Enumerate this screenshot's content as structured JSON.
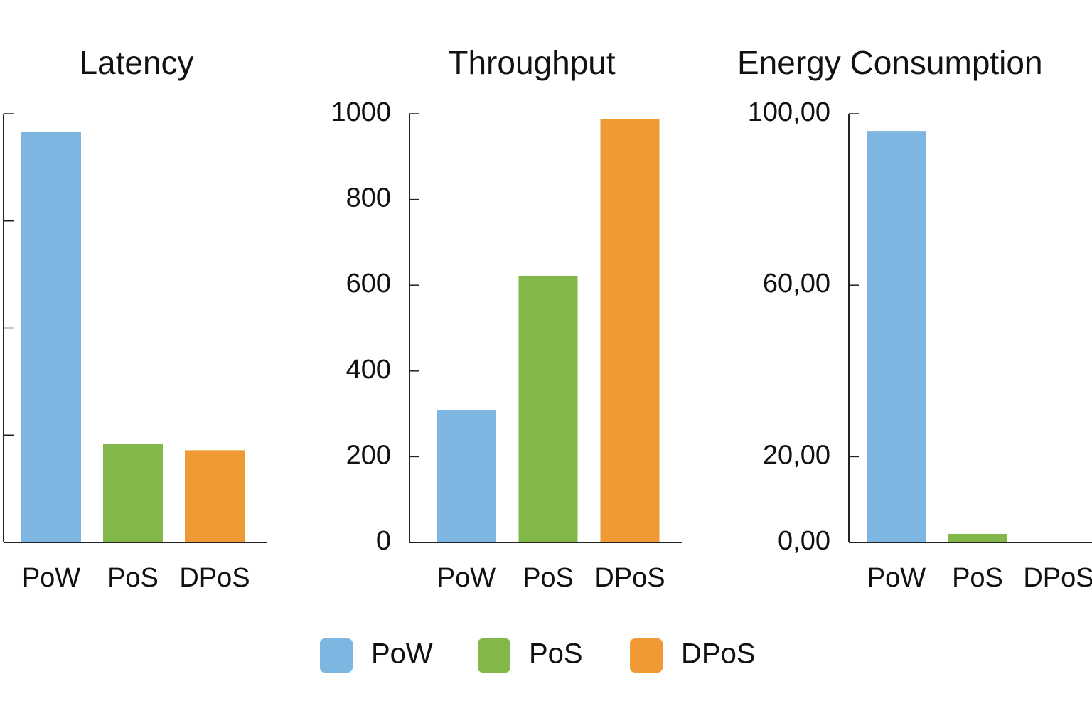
{
  "chart_data": [
    {
      "type": "bar",
      "title": "Latency",
      "categories": [
        "PoW",
        "PoS",
        "DPoS"
      ],
      "values": [
        3.83,
        0.92,
        0.86
      ],
      "colors": [
        "#7db6e0",
        "#82b84a",
        "#f09a36"
      ],
      "ylim": [
        0,
        4
      ],
      "yticks": [
        1,
        2,
        3,
        4
      ],
      "ytick_labels": false
    },
    {
      "type": "bar",
      "title": "Throughput",
      "categories": [
        "PoW",
        "PoS",
        "DPoS"
      ],
      "values": [
        310,
        622,
        988
      ],
      "colors": [
        "#7db6e0",
        "#82b84a",
        "#f09a36"
      ],
      "ylim": [
        0,
        1000
      ],
      "yticks": [
        0,
        200,
        400,
        600,
        800,
        1000
      ],
      "ytick_labels": true
    },
    {
      "type": "bar",
      "title": "Energy Consumption",
      "categories": [
        "PoW",
        "PoS",
        "DPoS"
      ],
      "values": [
        96,
        2,
        0
      ],
      "colors": [
        "#7db6e0",
        "#82b84a",
        "#f09a36"
      ],
      "ylim": [
        0,
        100
      ],
      "yticks": [
        {
          "value": 0,
          "label": "0,00"
        },
        {
          "value": 20,
          "label": "20,00"
        },
        {
          "value": 60,
          "label": "60,00"
        },
        {
          "value": 100,
          "label": "100,00"
        }
      ],
      "ytick_labels": true
    }
  ],
  "legend": {
    "labels": [
      "PoW",
      "PoS",
      "DPoS"
    ],
    "colors": [
      "#7db6e0",
      "#82b84a",
      "#f09a36"
    ]
  }
}
